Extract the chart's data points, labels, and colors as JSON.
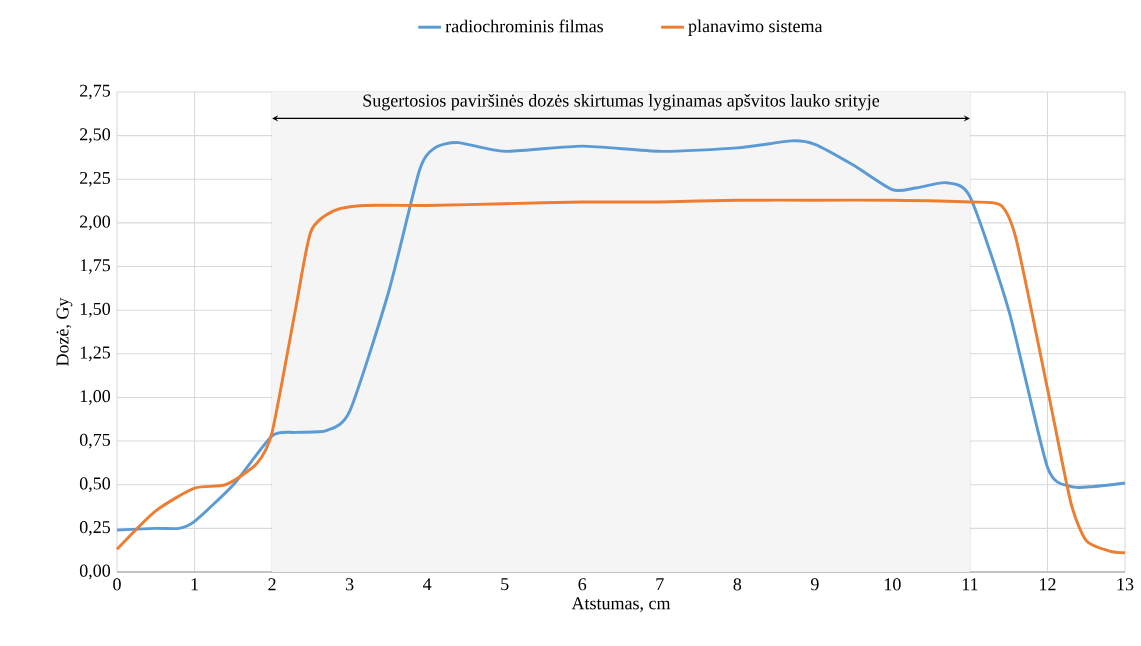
{
  "chart_data": {
    "type": "line",
    "xlabel": "Atstumas, cm",
    "ylabel": "Dozė, Gy",
    "xlim": [
      0,
      13
    ],
    "ylim": [
      0,
      2.75
    ],
    "xticks": [
      0,
      1,
      2,
      3,
      4,
      5,
      6,
      7,
      8,
      9,
      10,
      11,
      12,
      13
    ],
    "yticks": [
      {
        "value": 0,
        "label": "0,00"
      },
      {
        "value": 0.25,
        "label": "0,25"
      },
      {
        "value": 0.5,
        "label": "0,50"
      },
      {
        "value": 0.75,
        "label": "0,75"
      },
      {
        "value": 1,
        "label": "1,00"
      },
      {
        "value": 1.25,
        "label": "1,25"
      },
      {
        "value": 1.5,
        "label": "1,50"
      },
      {
        "value": 1.75,
        "label": "1,75"
      },
      {
        "value": 2,
        "label": "2,00"
      },
      {
        "value": 2.25,
        "label": "2,25"
      },
      {
        "value": 2.5,
        "label": "2,50"
      },
      {
        "value": 2.75,
        "label": "2,75"
      }
    ],
    "grid": true,
    "legend": "top",
    "marker": "none",
    "line_style": "solid",
    "bands": [
      {
        "axis": "x",
        "from": 2,
        "to": 11,
        "label": "Sugertosios paviršinės dozės skirtumas lyginamas apšvitos lauko srityje"
      }
    ],
    "series": [
      {
        "name": "radiochrominis filmas",
        "color": "#5b9bd5",
        "x": [
          0,
          0.5,
          0.8,
          1,
          1.5,
          2,
          2.3,
          2.7,
          3,
          3.5,
          3.9,
          4.1,
          4.4,
          5,
          6,
          7,
          8,
          8.7,
          9,
          9.5,
          10,
          10.3,
          10.7,
          11,
          11.5,
          12,
          12.3,
          12.6,
          13
        ],
        "values": [
          0.24,
          0.25,
          0.25,
          0.29,
          0.5,
          0.78,
          0.8,
          0.81,
          0.92,
          1.6,
          2.3,
          2.43,
          2.46,
          2.41,
          2.44,
          2.41,
          2.43,
          2.47,
          2.45,
          2.33,
          2.19,
          2.2,
          2.23,
          2.15,
          1.5,
          0.6,
          0.49,
          0.49,
          0.51
        ]
      },
      {
        "name": "planavimo sistema",
        "color": "#ed7d31",
        "x": [
          0,
          0.5,
          1,
          1.4,
          1.8,
          2,
          2.3,
          2.5,
          2.8,
          3.2,
          4,
          5,
          6,
          7,
          8,
          9,
          10,
          11,
          11.4,
          11.6,
          12,
          12.3,
          12.5,
          12.8,
          13
        ],
        "values": [
          0.13,
          0.35,
          0.48,
          0.5,
          0.62,
          0.8,
          1.5,
          1.95,
          2.07,
          2.1,
          2.1,
          2.11,
          2.12,
          2.12,
          2.13,
          2.13,
          2.13,
          2.12,
          2.1,
          1.9,
          1.05,
          0.4,
          0.18,
          0.12,
          0.11
        ]
      }
    ]
  }
}
